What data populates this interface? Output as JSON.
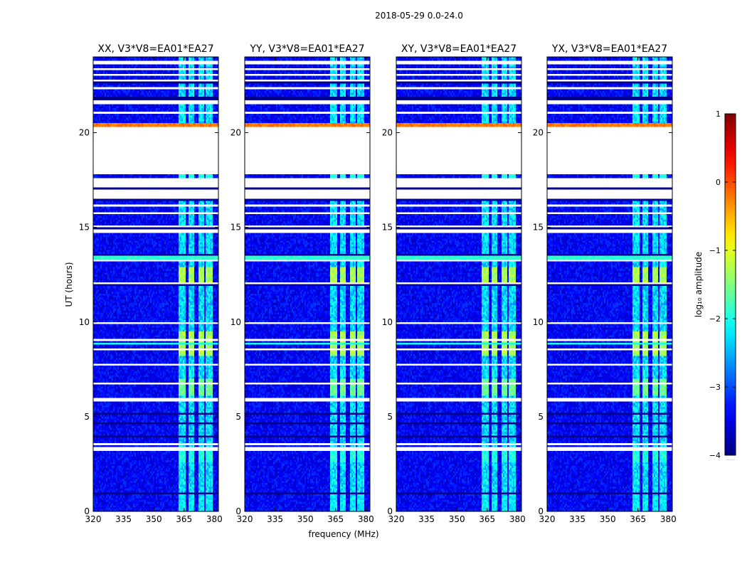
{
  "chart_data": {
    "type": "heatmap",
    "suptitle": "2018-05-29 0.0-24.0",
    "xlabel": "frequency (MHz)",
    "ylabel": "UT (hours)",
    "xlim": [
      320,
      382
    ],
    "ylim": [
      0,
      24
    ],
    "xticks": [
      320,
      335,
      350,
      365,
      380
    ],
    "yticks": [
      0,
      5,
      10,
      15,
      20
    ],
    "panels": [
      {
        "title": "XX, V3*V8=EA01*EA27"
      },
      {
        "title": "YY, V3*V8=EA01*EA27"
      },
      {
        "title": "XY, V3*V8=EA01*EA27"
      },
      {
        "title": "YX, V3*V8=EA01*EA27"
      }
    ],
    "colorbar": {
      "label": "log₁₀ amplitude",
      "min": -4,
      "max": 1,
      "ticks": [
        1,
        0,
        -1,
        -2,
        -3,
        -4
      ],
      "colormap": "jet",
      "under_label": "......"
    },
    "background_level": -3.4,
    "rfi_bands_mhz": [
      [
        362.5,
        366
      ],
      [
        367.5,
        370
      ],
      [
        372,
        375
      ],
      [
        376,
        379
      ]
    ],
    "rfi_level": -2.3,
    "blank_ut_hours": [
      [
        0.95,
        1.0
      ],
      [
        1.45,
        1.55
      ],
      [
        3.25,
        3.35
      ],
      [
        3.5,
        3.6
      ],
      [
        5.85,
        5.95
      ],
      [
        6.7,
        6.8
      ],
      [
        7.7,
        7.8
      ],
      [
        8.5,
        8.6
      ],
      [
        9.0,
        9.1
      ],
      [
        9.9,
        10.0
      ],
      [
        12.0,
        12.1
      ],
      [
        13.2,
        13.3
      ],
      [
        14.7,
        14.9
      ],
      [
        15.0,
        15.1
      ],
      [
        15.7,
        15.8
      ],
      [
        16.1,
        16.2
      ],
      [
        16.5,
        17.0
      ],
      [
        17.1,
        17.6
      ],
      [
        17.8,
        20.4
      ],
      [
        21.0,
        21.1
      ],
      [
        21.5,
        21.7
      ],
      [
        22.3,
        22.4
      ],
      [
        22.7,
        22.8
      ],
      [
        23.0,
        23.1
      ],
      [
        23.3,
        23.4
      ],
      [
        23.6,
        23.8
      ]
    ],
    "dark_ut_hours": [
      [
        0.5,
        0.55
      ],
      [
        0.9,
        0.95
      ],
      [
        3.9,
        4.0
      ],
      [
        4.6,
        4.7
      ],
      [
        5.1,
        5.2
      ],
      [
        11.9,
        12.0
      ],
      [
        13.5,
        13.6
      ],
      [
        14.9,
        15.0
      ],
      [
        16.45,
        16.5
      ],
      [
        17.0,
        17.1
      ],
      [
        21.7,
        21.95
      ],
      [
        22.6,
        22.7
      ]
    ],
    "enhanced_ut_hours": [
      {
        "range": [
          6.1,
          7.0
        ],
        "level": -1.6
      },
      {
        "range": [
          8.2,
          9.5
        ],
        "level": -1.3
      },
      {
        "range": [
          12.0,
          12.9
        ],
        "level": -1.3
      },
      {
        "range": [
          2.6,
          3.2
        ],
        "level": -2.0
      },
      {
        "range": [
          0.0,
          0.9
        ],
        "level": -2.2
      }
    ],
    "bright_lines": [
      {
        "ut": 20.4,
        "level": -0.2,
        "span": "full"
      },
      {
        "ut": 8.85,
        "level": -2.0,
        "span": "full"
      },
      {
        "ut": 13.4,
        "level": -1.9,
        "span": "full"
      }
    ]
  }
}
